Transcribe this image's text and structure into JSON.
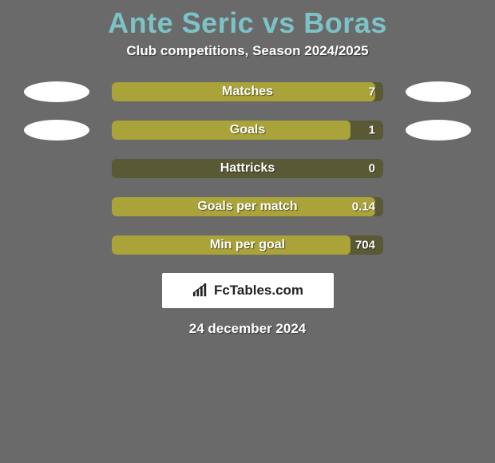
{
  "background_color": "#6a6a6a",
  "title": "Ante Seric vs Boras",
  "title_color": "#7cc3c7",
  "subtitle": "Club competitions, Season 2024/2025",
  "subtitle_color": "#ffffff",
  "ellipse_color": "#ffffff",
  "bar": {
    "track_color": "#595935",
    "fill_color": "#aaa33a",
    "label_color": "#ffffff",
    "value_color": "#ffffff"
  },
  "rows": [
    {
      "label": "Matches",
      "value": "7",
      "fill_pct": 97,
      "show_ellipses": true
    },
    {
      "label": "Goals",
      "value": "1",
      "fill_pct": 88,
      "show_ellipses": true
    },
    {
      "label": "Hattricks",
      "value": "0",
      "fill_pct": 0,
      "show_ellipses": false
    },
    {
      "label": "Goals per match",
      "value": "0.14",
      "fill_pct": 97,
      "show_ellipses": false
    },
    {
      "label": "Min per goal",
      "value": "704",
      "fill_pct": 88,
      "show_ellipses": false
    }
  ],
  "brand": {
    "text": "FcTables.com",
    "bg_color": "#ffffff",
    "text_color": "#222222",
    "icon_color": "#222222"
  },
  "date": "24 december 2024",
  "date_color": "#ffffff"
}
